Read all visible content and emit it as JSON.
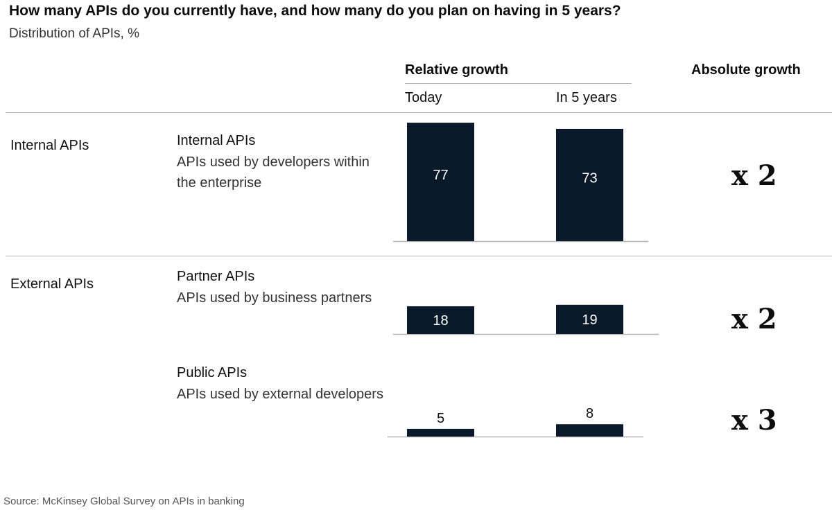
{
  "title": "How many APIs do you currently have, and how many do you plan on having in 5 years?",
  "subtitle": "Distribution of APIs, %",
  "headers": {
    "relative_growth": "Relative growth",
    "absolute_growth": "Absolute growth",
    "today": "Today",
    "in_5_years": "In 5 years"
  },
  "groups": [
    {
      "label": "Internal APIs"
    },
    {
      "label": "External APIs"
    }
  ],
  "rows": [
    {
      "title": "Internal APIs",
      "desc": "APIs used by developers within the enterprise",
      "absolute_growth": "x 2"
    },
    {
      "title": "Partner APIs",
      "desc": "APIs used by business partners",
      "absolute_growth": "x 2"
    },
    {
      "title": "Public APIs",
      "desc": "APIs used by external developers",
      "absolute_growth": "x 3"
    }
  ],
  "source": "Source: McKinsey Global Survey on APIs in banking",
  "colors": {
    "bar": "#0b1a2b",
    "bar_label_inside": "#ffffff",
    "bar_label_outside": "#111111",
    "rule": "#b3b3b3"
  },
  "chart_data": {
    "type": "bar",
    "title": "How many APIs do you currently have, and how many do you plan on having in 5 years?",
    "subtitle": "Distribution of APIs, %",
    "categories": [
      "Internal APIs",
      "Partner APIs",
      "Public APIs"
    ],
    "series": [
      {
        "name": "Today",
        "values": [
          77,
          18,
          5
        ]
      },
      {
        "name": "In 5 years",
        "values": [
          73,
          19,
          8
        ]
      }
    ],
    "absolute_growth": [
      "x 2",
      "x 2",
      "x 3"
    ],
    "ylim": [
      0,
      100
    ],
    "grid": false,
    "legend": "none"
  }
}
